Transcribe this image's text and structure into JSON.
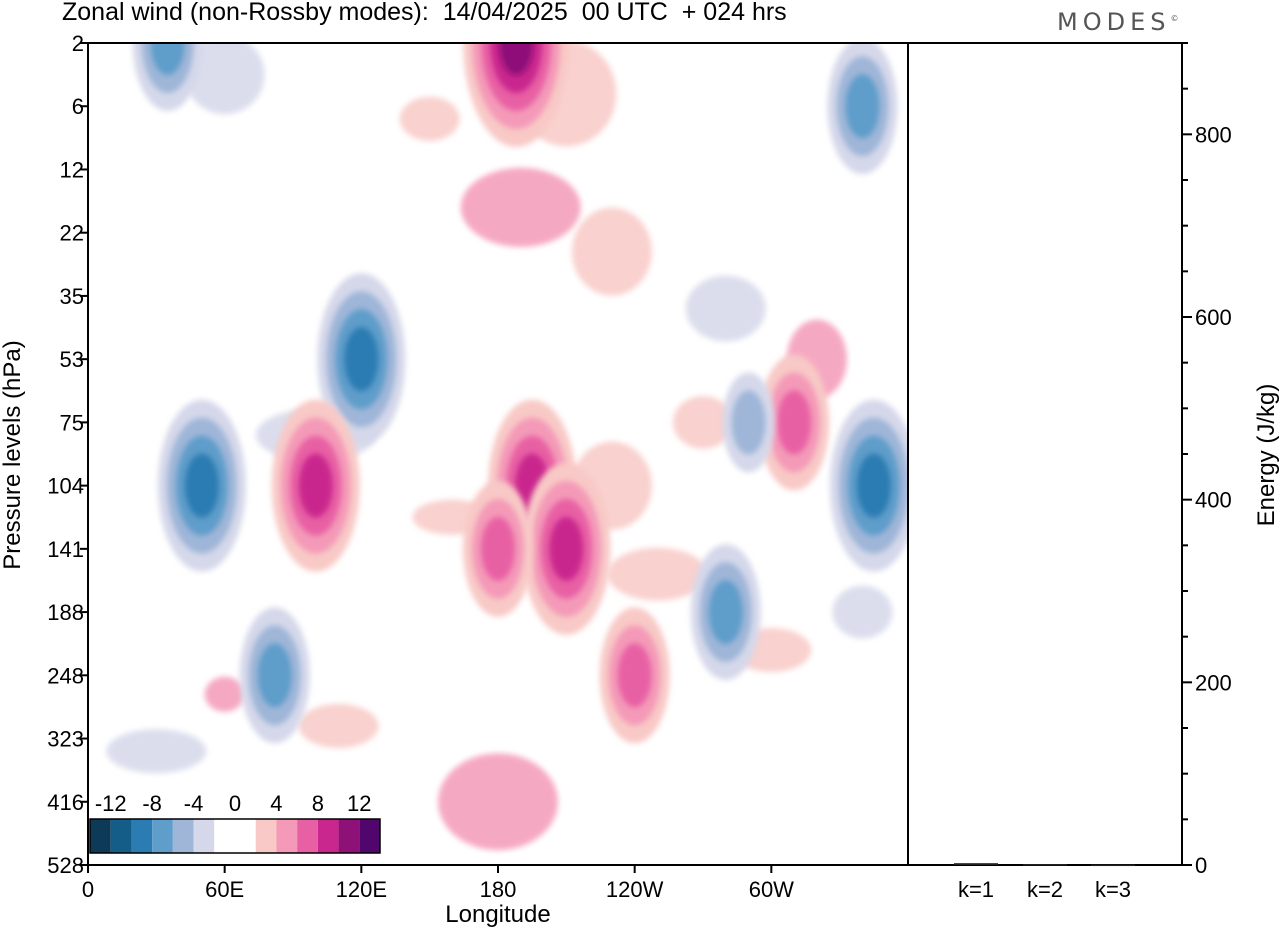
{
  "title": "Zonal wind (non-Rossby modes):  14/04/2025  00 UTC  + 024 hrs",
  "logo": "MODES",
  "logo_mark": "©",
  "colors": {
    "negative": [
      "#0d3b57",
      "#145d88",
      "#2a7cb2",
      "#5f9dca",
      "#9fb6d8",
      "#d5d8ea"
    ],
    "positive": [
      "#f8c9c6",
      "#f49ab8",
      "#e860a4",
      "#c9278d",
      "#8e1178",
      "#51066d"
    ],
    "frame": "#000000"
  },
  "chart_data": [
    {
      "type": "heatmap",
      "title": "Zonal wind (non-Rossby modes):  14/04/2025  00 UTC  + 024 hrs",
      "xlabel": "Longitude",
      "ylabel": "Pressure levels (hPa)",
      "x_ticks": [
        "0",
        "60E",
        "120E",
        "180",
        "120W",
        "60W"
      ],
      "y_ticks": [
        "2",
        "6",
        "12",
        "22",
        "35",
        "53",
        "75",
        "104",
        "141",
        "188",
        "248",
        "323",
        "416",
        "528"
      ],
      "colorbar": {
        "labels": [
          "-12",
          "-8",
          "-4",
          "0",
          "4",
          "8",
          "12"
        ],
        "levels": [
          -14,
          -12,
          -10,
          -8,
          -6,
          -4,
          -2,
          2,
          4,
          6,
          8,
          10,
          12,
          14
        ]
      },
      "features": [
        {
          "lon": 35,
          "level": "2",
          "value": -6
        },
        {
          "lon": 188,
          "level": "2",
          "value": 10
        },
        {
          "lon": 340,
          "level": "6",
          "value": -6
        },
        {
          "lon": 120,
          "level": "53",
          "value": -8
        },
        {
          "lon": 50,
          "level": "104",
          "value": -8
        },
        {
          "lon": 100,
          "level": "104",
          "value": 8
        },
        {
          "lon": 195,
          "level": "104",
          "value": 8
        },
        {
          "lon": 210,
          "level": "141",
          "value": 8
        },
        {
          "lon": 180,
          "level": "141",
          "value": 6
        },
        {
          "lon": 345,
          "level": "104",
          "value": -8
        },
        {
          "lon": 82,
          "level": "248",
          "value": -6
        },
        {
          "lon": 240,
          "level": "248",
          "value": 6
        },
        {
          "lon": 280,
          "level": "188",
          "value": -6
        },
        {
          "lon": 310,
          "level": "75",
          "value": 6
        },
        {
          "lon": 290,
          "level": "75",
          "value": -4
        }
      ]
    },
    {
      "type": "bar",
      "categories": [
        "k=1",
        "k=2",
        "k=3"
      ],
      "values": [
        2,
        1,
        0.5
      ],
      "ylabel": "Energy (J/kg)",
      "y_ticks": [
        "0",
        "200",
        "400",
        "600",
        "800"
      ],
      "ylim": [
        0,
        900
      ]
    }
  ]
}
